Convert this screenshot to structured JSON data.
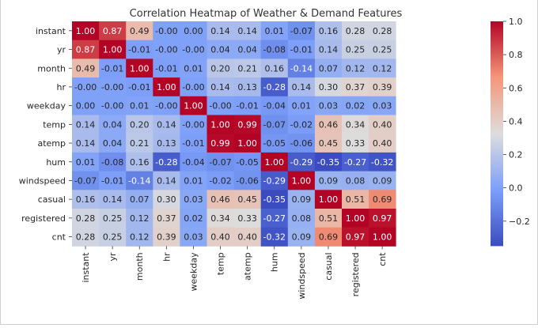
{
  "chart_data": {
    "type": "heatmap",
    "title": "Correlation Heatmap of Weather & Demand Features",
    "rows": [
      "instant",
      "yr",
      "month",
      "hr",
      "weekday",
      "temp",
      "atemp",
      "hum",
      "windspeed",
      "casual",
      "registered",
      "cnt"
    ],
    "columns": [
      "instant",
      "yr",
      "month",
      "hr",
      "weekday",
      "temp",
      "atemp",
      "hum",
      "windspeed",
      "casual",
      "registered",
      "cnt"
    ],
    "values": [
      [
        1.0,
        0.87,
        0.49,
        -0.0,
        0.0,
        0.14,
        0.14,
        0.01,
        -0.07,
        0.16,
        0.28,
        0.28
      ],
      [
        0.87,
        1.0,
        -0.01,
        -0.0,
        -0.0,
        0.04,
        0.04,
        -0.08,
        -0.01,
        0.14,
        0.25,
        0.25
      ],
      [
        0.49,
        -0.01,
        1.0,
        -0.01,
        0.01,
        0.2,
        0.21,
        0.16,
        -0.14,
        0.07,
        0.12,
        0.12
      ],
      [
        -0.0,
        -0.0,
        -0.01,
        1.0,
        -0.0,
        0.14,
        0.13,
        -0.28,
        0.14,
        0.3,
        0.37,
        0.39
      ],
      [
        0.0,
        -0.0,
        0.01,
        -0.0,
        1.0,
        -0.0,
        -0.01,
        -0.04,
        0.01,
        0.03,
        0.02,
        0.03
      ],
      [
        0.14,
        0.04,
        0.2,
        0.14,
        -0.0,
        1.0,
        0.99,
        -0.07,
        -0.02,
        0.46,
        0.34,
        0.4
      ],
      [
        0.14,
        0.04,
        0.21,
        0.13,
        -0.01,
        0.99,
        1.0,
        -0.05,
        -0.06,
        0.45,
        0.33,
        0.4
      ],
      [
        0.01,
        -0.08,
        0.16,
        -0.28,
        -0.04,
        -0.07,
        -0.05,
        1.0,
        -0.29,
        -0.35,
        -0.27,
        -0.32
      ],
      [
        -0.07,
        -0.01,
        -0.14,
        0.14,
        0.01,
        -0.02,
        -0.06,
        -0.29,
        1.0,
        0.09,
        0.08,
        0.09
      ],
      [
        0.16,
        0.14,
        0.07,
        0.3,
        0.03,
        0.46,
        0.45,
        -0.35,
        0.09,
        1.0,
        0.51,
        0.69
      ],
      [
        0.28,
        0.25,
        0.12,
        0.37,
        0.02,
        0.34,
        0.33,
        -0.27,
        0.08,
        0.51,
        1.0,
        0.97
      ],
      [
        0.28,
        0.25,
        0.12,
        0.39,
        0.03,
        0.4,
        0.4,
        -0.32,
        0.09,
        0.69,
        0.97,
        1.0
      ]
    ],
    "colormap": "coolwarm",
    "color_range": [
      -0.35,
      1.0
    ],
    "colorbar": {
      "ticks": [
        1.0,
        0.8,
        0.6,
        0.4,
        0.2,
        0.0,
        -0.2
      ],
      "tick_labels": [
        "1.0",
        "0.8",
        "0.6",
        "0.4",
        "0.2",
        "0.0",
        "−0.2"
      ]
    },
    "annotations": true,
    "annotation_format": "0.00"
  }
}
